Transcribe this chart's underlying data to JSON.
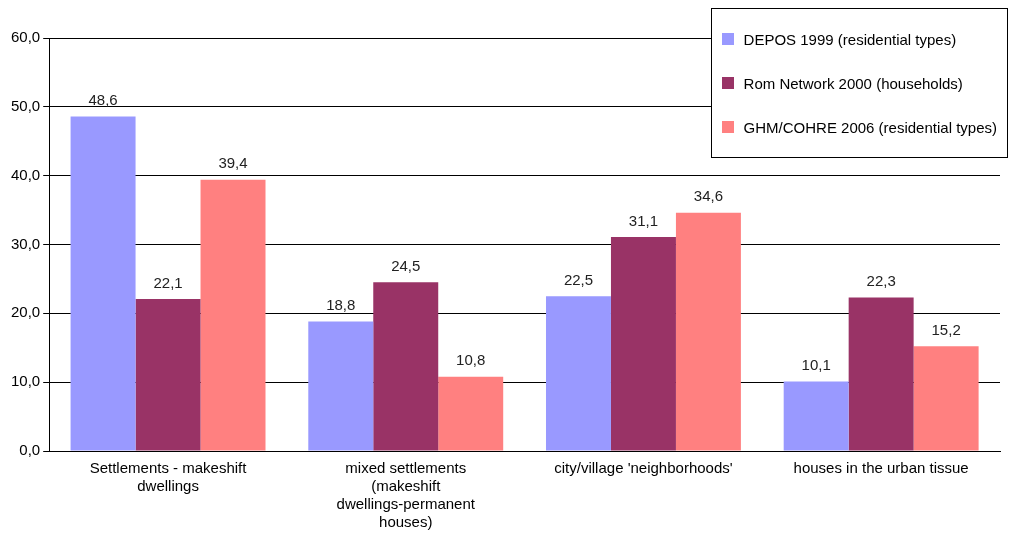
{
  "chart_data": {
    "type": "bar",
    "categories": [
      "Settlements - makeshift dwellings",
      "mixed settlements (makeshift dwellings-permanent houses)",
      "city/village 'neighborhoods'",
      "houses in the urban tissue"
    ],
    "series": [
      {
        "name": "DEPOS 1999 (residential types)",
        "color": "#9999ff",
        "values": [
          48.6,
          18.8,
          22.5,
          10.1
        ],
        "value_labels": [
          "48,6",
          "18,8",
          "22,5",
          "10,1"
        ]
      },
      {
        "name": "Rom Network 2000 (households)",
        "color": "#993366",
        "values": [
          22.1,
          24.5,
          31.1,
          22.3
        ],
        "value_labels": [
          "22,1",
          "24,5",
          "31,1",
          "22,3"
        ]
      },
      {
        "name": "GHM/COHRE 2006 (residential types)",
        "color": "#ff8080",
        "values": [
          39.4,
          10.8,
          34.6,
          15.2
        ],
        "value_labels": [
          "39,4",
          "10,8",
          "34,6",
          "15,2"
        ]
      }
    ],
    "ylim": [
      0,
      60
    ],
    "yticks": [
      {
        "value": 0,
        "label": "0,0"
      },
      {
        "value": 10,
        "label": "10,0"
      },
      {
        "value": 20,
        "label": "20,0"
      },
      {
        "value": 30,
        "label": "30,0"
      },
      {
        "value": 40,
        "label": "40,0"
      },
      {
        "value": 50,
        "label": "50,0"
      },
      {
        "value": 60,
        "label": "60,0"
      }
    ],
    "grid": "y",
    "legend": "top right"
  }
}
